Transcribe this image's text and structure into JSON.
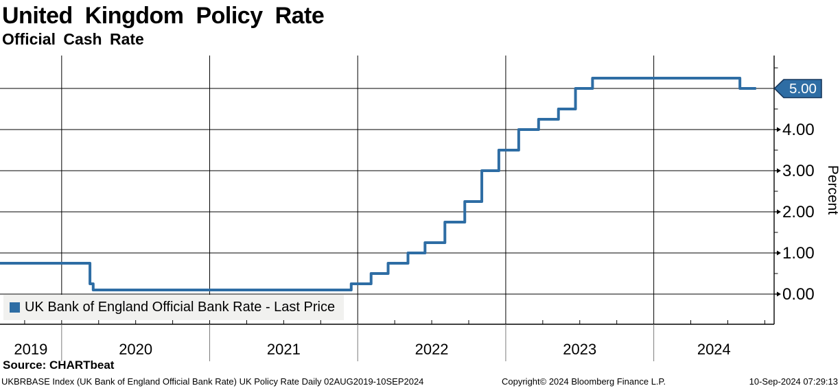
{
  "header": {
    "title": "United Kingdom Policy Rate",
    "subtitle": "Official Cash Rate"
  },
  "legend": {
    "label": "UK Bank of England Official Bank Rate - Last Price",
    "swatch_color": "#2e6da4"
  },
  "y_axis": {
    "label": "Percent",
    "ticks": [
      "0.00",
      "1.00",
      "2.00",
      "3.00",
      "4.00",
      "5.00"
    ],
    "minor_tick_step": 0.5
  },
  "x_axis": {
    "labels": [
      "2019",
      "2020",
      "2021",
      "2022",
      "2023",
      "2024"
    ]
  },
  "last_price_badge": {
    "value": "5.00",
    "fill": "#2e6da4",
    "border": "#17375c",
    "text_color": "#ffffff"
  },
  "footer": {
    "source": "Source: CHARTbeat",
    "description": "UKBRBASE Index (UK Bank of England Official Bank Rate) UK Policy Rate  Daily 02AUG2019-10SEP2024",
    "copyright": "Copyright© 2024 Bloomberg Finance L.P.",
    "timestamp": "10-Sep-2024 07:29:13"
  },
  "chart_data": {
    "type": "line",
    "step": true,
    "title": "United Kingdom Policy Rate",
    "subtitle": "Official Cash Rate",
    "xlabel": "",
    "ylabel": "Percent",
    "x_range": [
      "02AUG2019",
      "10SEP2024"
    ],
    "end_date": "10SEP2024",
    "ylim": [
      -0.73,
      5.8
    ],
    "y_gridlines": [
      0,
      1,
      2,
      3,
      4,
      5
    ],
    "x_year_gridlines": [
      2020,
      2021,
      2022,
      2023,
      2024
    ],
    "grid": true,
    "legend_position": "bottom-left",
    "last_value": 5.0,
    "series": [
      {
        "name": "UK Bank of England Official Bank Rate - Last Price",
        "color": "#2e6da4",
        "points": [
          {
            "date": "02AUG2019",
            "value": 0.75
          },
          {
            "date": "11MAR2020",
            "value": 0.25
          },
          {
            "date": "19MAR2020",
            "value": 0.1
          },
          {
            "date": "16DEC2021",
            "value": 0.25
          },
          {
            "date": "03FEB2022",
            "value": 0.5
          },
          {
            "date": "17MAR2022",
            "value": 0.75
          },
          {
            "date": "05MAY2022",
            "value": 1.0
          },
          {
            "date": "16JUN2022",
            "value": 1.25
          },
          {
            "date": "04AUG2022",
            "value": 1.75
          },
          {
            "date": "22SEP2022",
            "value": 2.25
          },
          {
            "date": "03NOV2022",
            "value": 3.0
          },
          {
            "date": "15DEC2022",
            "value": 3.5
          },
          {
            "date": "02FEB2023",
            "value": 4.0
          },
          {
            "date": "23MAR2023",
            "value": 4.25
          },
          {
            "date": "11MAY2023",
            "value": 4.5
          },
          {
            "date": "22JUN2023",
            "value": 5.0
          },
          {
            "date": "03AUG2023",
            "value": 5.25
          },
          {
            "date": "01AUG2024",
            "value": 5.0
          }
        ]
      }
    ]
  }
}
